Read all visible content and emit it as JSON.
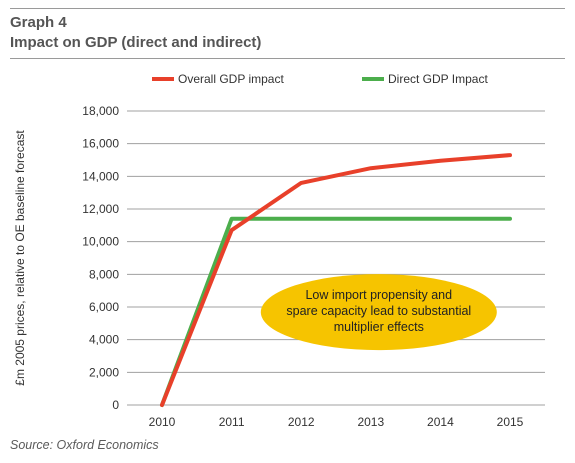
{
  "header": {
    "graph_label": "Graph 4",
    "title": "Impact on GDP (direct and indirect)"
  },
  "source": "Source: Oxford Economics",
  "chart_data": {
    "type": "line",
    "xlabel": "",
    "ylabel": "£m 2005 prices, relative to OE baseline forecast",
    "x": [
      2010,
      2011,
      2012,
      2013,
      2014,
      2015
    ],
    "x_tick_labels": [
      "2010",
      "2011",
      "2012",
      "2013",
      "2014",
      "2015"
    ],
    "ylim": [
      0,
      18000
    ],
    "y_ticks": [
      0,
      2000,
      4000,
      6000,
      8000,
      10000,
      12000,
      14000,
      16000,
      18000
    ],
    "y_tick_labels": [
      "0",
      "2,000",
      "4,000",
      "6,000",
      "8,000",
      "10,000",
      "12,000",
      "14,000",
      "16,000",
      "18,000"
    ],
    "grid": "horizontal",
    "legend_position": "top",
    "series": [
      {
        "name": "Overall GDP impact",
        "color": "#e8402a",
        "points": [
          [
            2010,
            0
          ],
          [
            2011,
            10700
          ],
          [
            2012,
            13600
          ],
          [
            2013,
            14500
          ],
          [
            2014,
            14950
          ],
          [
            2015,
            15300
          ]
        ]
      },
      {
        "name": "Direct GDP Impact",
        "color": "#4cae4c",
        "points": [
          [
            2010,
            0
          ],
          [
            2011,
            11400
          ],
          [
            2012,
            11400
          ],
          [
            2013,
            11400
          ],
          [
            2014,
            11400
          ],
          [
            2015,
            11400
          ]
        ]
      }
    ],
    "annotation": {
      "lines": [
        "Low import propensity and",
        "spare capacity lead to substantial",
        "multiplier effects"
      ],
      "color": "#f6c400",
      "anchor": [
        2013,
        5500
      ]
    }
  }
}
